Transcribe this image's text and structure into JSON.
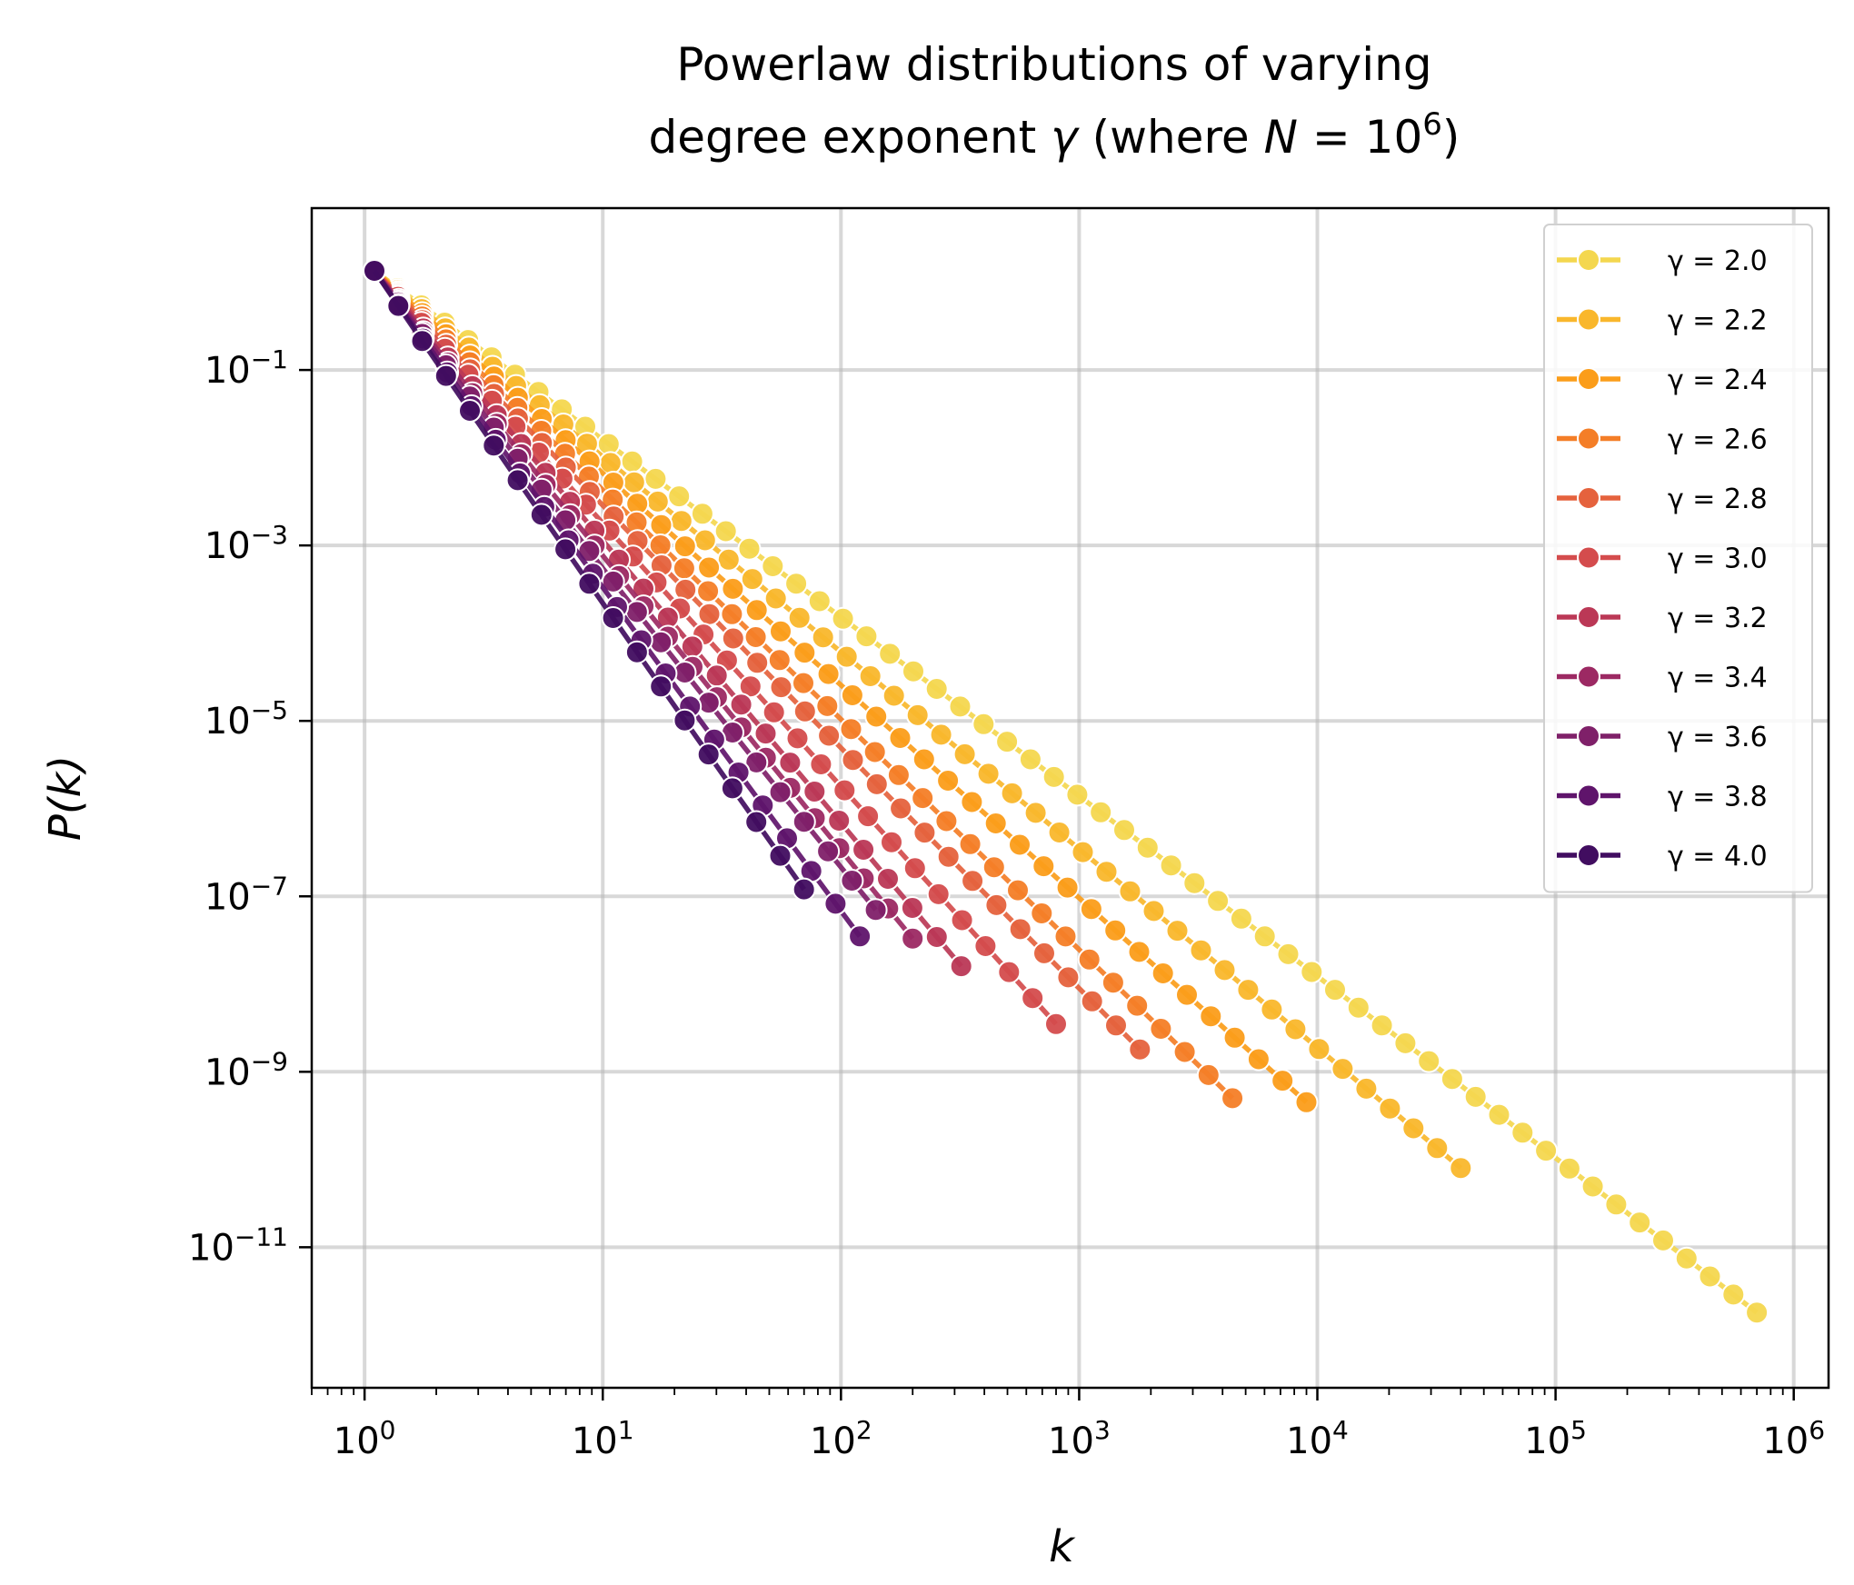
{
  "chart_data": {
    "type": "line",
    "title_line1": "Powerlaw distributions of varying",
    "title_line2_prefix": "degree exponent ",
    "title_symbol": "γ",
    "title_where": " (where ",
    "title_N": "N",
    "title_eq": " = 10",
    "title_exp": "6",
    "title_close": ")",
    "xlabel": "k",
    "ylabel": "P(k)",
    "xscale": "log",
    "yscale": "log",
    "xlim": [
      0.6,
      1400000
    ],
    "ylim": [
      2.5e-13,
      7.0
    ],
    "grid": true,
    "legend_position": "top-right",
    "x_ticks": [
      {
        "base": "10",
        "exp": "0",
        "value": 1
      },
      {
        "base": "10",
        "exp": "1",
        "value": 10
      },
      {
        "base": "10",
        "exp": "2",
        "value": 100
      },
      {
        "base": "10",
        "exp": "3",
        "value": 1000
      },
      {
        "base": "10",
        "exp": "4",
        "value": 10000
      },
      {
        "base": "10",
        "exp": "5",
        "value": 100000
      },
      {
        "base": "10",
        "exp": "6",
        "value": 1000000
      }
    ],
    "y_ticks": [
      {
        "base": "10",
        "exp": "−1",
        "value": 0.1
      },
      {
        "base": "10",
        "exp": "−3",
        "value": 0.001
      },
      {
        "base": "10",
        "exp": "−5",
        "value": 1e-05
      },
      {
        "base": "10",
        "exp": "−7",
        "value": 1e-07
      },
      {
        "base": "10",
        "exp": "−9",
        "value": 1e-09
      },
      {
        "base": "10",
        "exp": "−11",
        "value": 1e-11
      }
    ],
    "series": [
      {
        "label": "γ = 2.0",
        "gamma": 2.0,
        "color": "#f4d74f",
        "k_max": 700000,
        "y_end": 1.8e-12
      },
      {
        "label": "γ = 2.2",
        "gamma": 2.2,
        "color": "#f9b72c",
        "k_max": 40000,
        "y_end": 8e-11
      },
      {
        "label": "γ = 2.4",
        "gamma": 2.4,
        "color": "#fb9d1a",
        "k_max": 9000,
        "y_end": 4.5e-10
      },
      {
        "label": "γ = 2.6",
        "gamma": 2.6,
        "color": "#f47e27",
        "k_max": 4400,
        "y_end": 5e-10
      },
      {
        "label": "γ = 2.8",
        "gamma": 2.8,
        "color": "#e5623d",
        "k_max": 1800,
        "y_end": 1.8e-09
      },
      {
        "label": "γ = 3.0",
        "gamma": 3.0,
        "color": "#d44c4d",
        "k_max": 800,
        "y_end": 3.5e-09
      },
      {
        "label": "γ = 3.2",
        "gamma": 3.2,
        "color": "#bb3856",
        "k_max": 320,
        "y_end": 1.6e-08
      },
      {
        "label": "γ = 3.4",
        "gamma": 3.4,
        "color": "#9c2963",
        "k_max": 200,
        "y_end": 3.3e-08
      },
      {
        "label": "γ = 3.6",
        "gamma": 3.6,
        "color": "#7f2069",
        "k_max": 140,
        "y_end": 7e-08
      },
      {
        "label": "γ = 3.8",
        "gamma": 3.8,
        "color": "#5f146b",
        "k_max": 120,
        "y_end": 3.5e-08
      },
      {
        "label": "γ = 4.0",
        "gamma": 4.0,
        "color": "#410d60",
        "k_max": 70,
        "y_end": 1.2e-07
      }
    ]
  }
}
